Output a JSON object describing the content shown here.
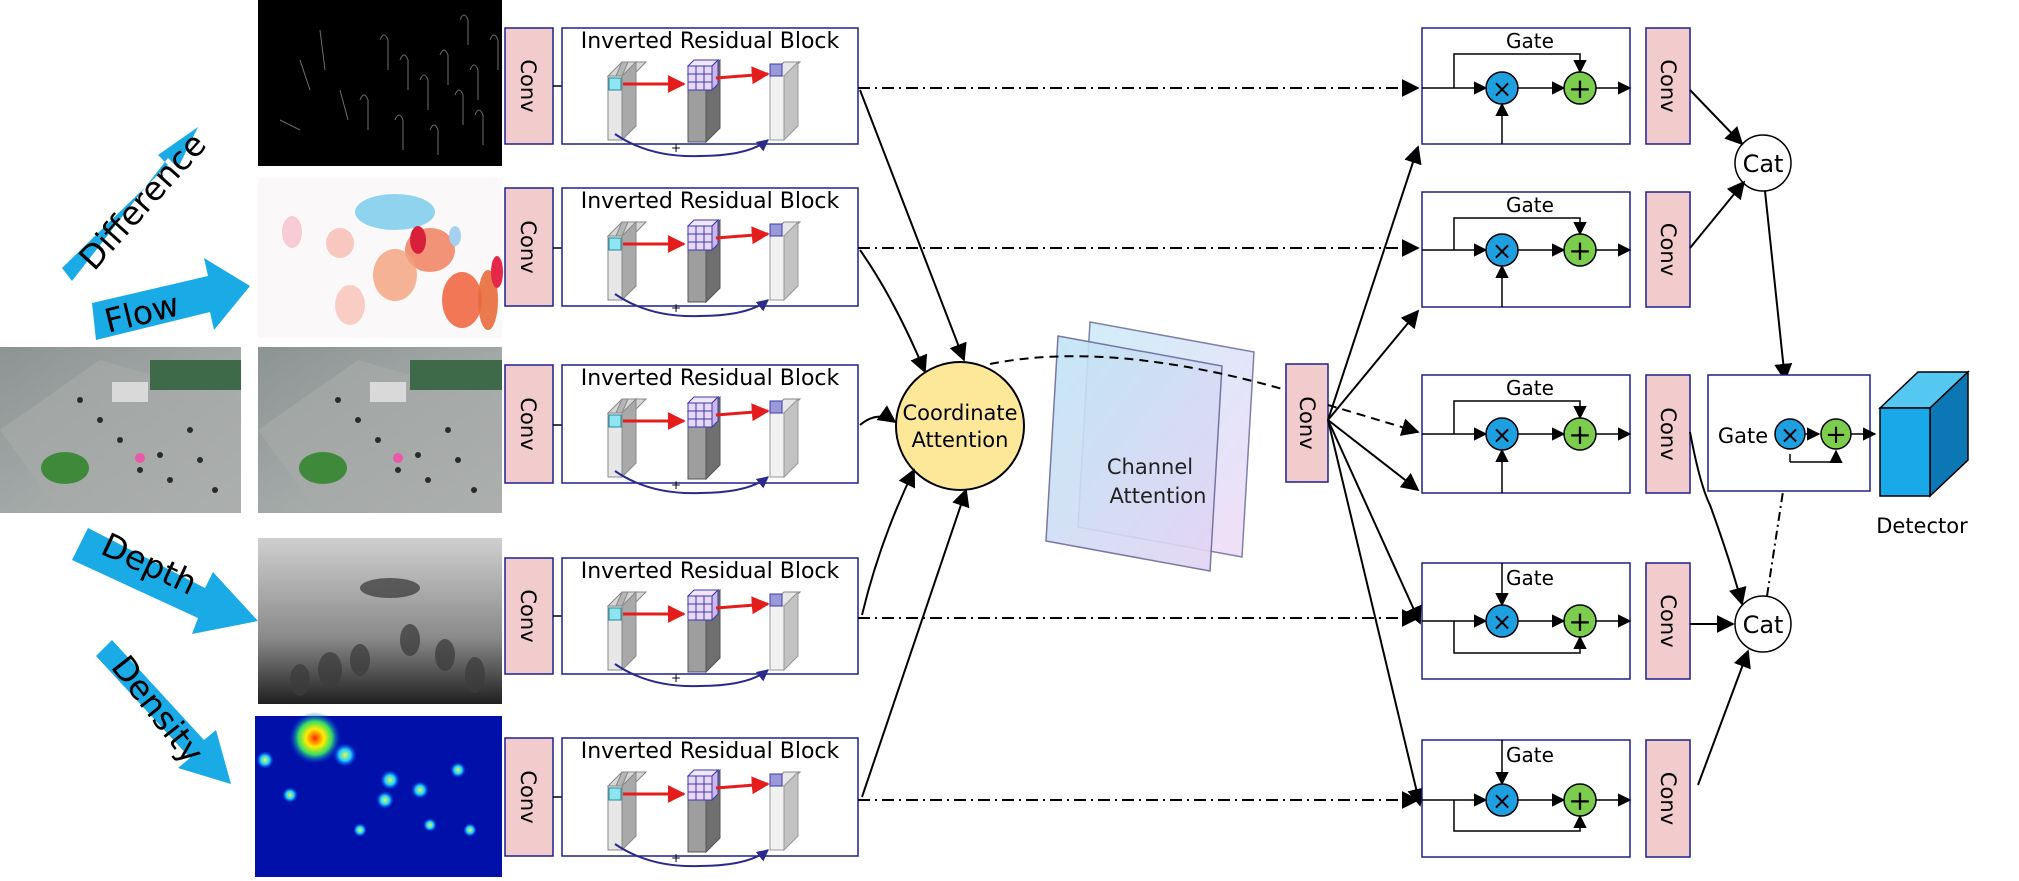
{
  "inputs": {
    "difference": "Difference",
    "flow": "Flow",
    "depth": "Depth",
    "density": "Density"
  },
  "branches": [
    {
      "conv": "Conv",
      "block": "Inverted Residual Block",
      "plus": "+"
    },
    {
      "conv": "Conv",
      "block": "Inverted Residual Block",
      "plus": "+"
    },
    {
      "conv": "Conv",
      "block": "Inverted Residual Block",
      "plus": "+"
    },
    {
      "conv": "Conv",
      "block": "Inverted Residual Block",
      "plus": "+"
    },
    {
      "conv": "Conv",
      "block": "Inverted Residual Block",
      "plus": "+"
    }
  ],
  "coordinate_attention": {
    "line1": "Coordinate",
    "line2": "Attention"
  },
  "channel_attention": {
    "line1": "Channel",
    "line2": "Attention"
  },
  "center_conv": "Conv",
  "gates": [
    {
      "label": "Gate",
      "conv": "Conv"
    },
    {
      "label": "Gate",
      "conv": "Conv"
    },
    {
      "label": "Gate",
      "conv": "Conv"
    },
    {
      "label": "Gate",
      "conv": "Conv"
    },
    {
      "label": "Gate",
      "conv": "Conv"
    }
  ],
  "cat_top": "Cat",
  "cat_bottom": "Cat",
  "final_gate": "Gate",
  "detector": "Detector",
  "symbols": {
    "multiply": "×",
    "add": "+"
  },
  "colors": {
    "box_border": "#1f1f8f",
    "conv_fill": "#f2cccc",
    "arrow_blue": "#1aaae6",
    "attention_fill": "#fde89a",
    "mult_fill": "#1e9fe0",
    "add_fill": "#7ccd4e",
    "detector_front": "#1aa9e8",
    "detector_side": "#0b77b5",
    "detector_top": "#55c8f2"
  }
}
